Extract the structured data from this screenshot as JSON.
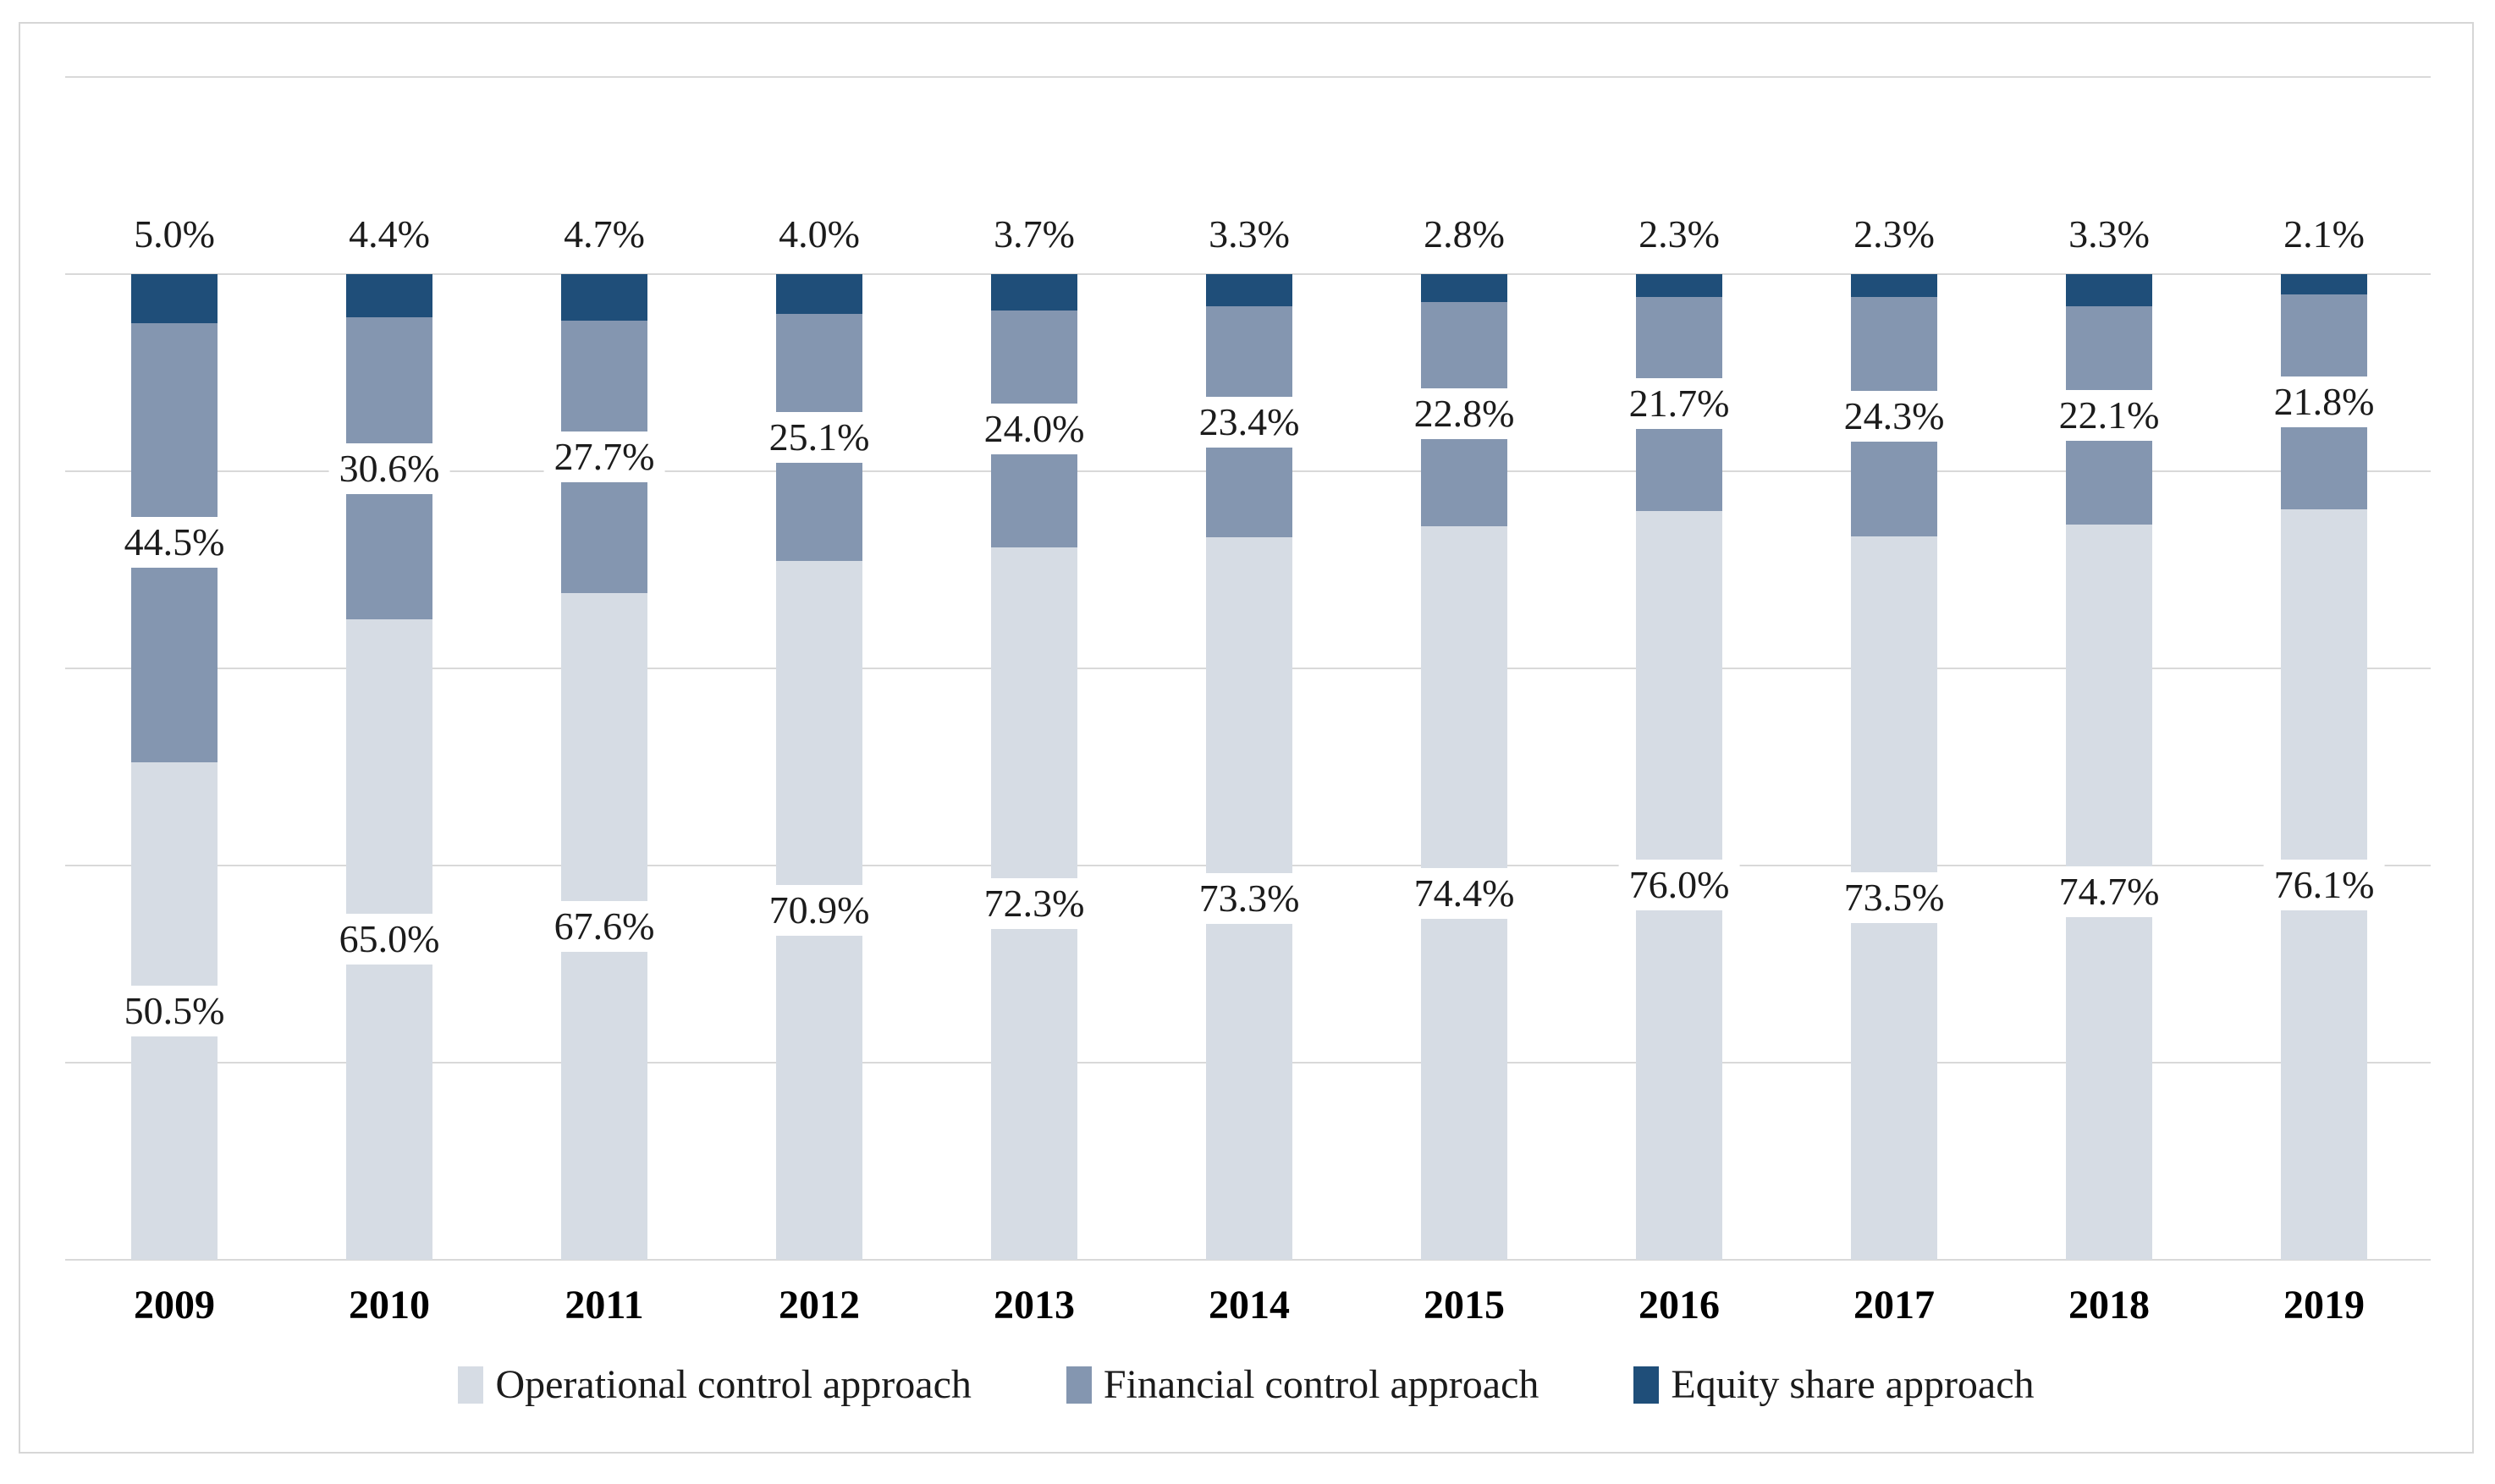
{
  "figure": {
    "background_color": "#FFFFFF",
    "frame_border_color": "#D6D6D6"
  },
  "chart_data": {
    "type": "bar",
    "stacked": true,
    "percent_stacked": true,
    "title": "",
    "xlabel": "",
    "ylabel": "",
    "categories": [
      "2009",
      "2010",
      "2011",
      "2012",
      "2013",
      "2014",
      "2015",
      "2016",
      "2017",
      "2018",
      "2019"
    ],
    "series": [
      {
        "name": "Operational control approach",
        "color": "#D6DCE4",
        "values": [
          50.5,
          65.0,
          67.6,
          70.9,
          72.3,
          73.3,
          74.4,
          76.0,
          73.5,
          74.7,
          76.1
        ],
        "labels": [
          "50.5%",
          "65.0%",
          "67.6%",
          "70.9%",
          "72.3%",
          "73.3%",
          "74.4%",
          "76.0%",
          "73.5%",
          "74.7%",
          "76.1%"
        ]
      },
      {
        "name": "Financial control approach",
        "color": "#8496B0",
        "values": [
          44.5,
          30.6,
          27.7,
          25.1,
          24.0,
          23.4,
          22.8,
          21.7,
          24.3,
          22.1,
          21.8
        ],
        "labels": [
          "44.5%",
          "30.6%",
          "27.7%",
          "25.1%",
          "24.0%",
          "23.4%",
          "22.8%",
          "21.7%",
          "24.3%",
          "22.1%",
          "21.8%"
        ]
      },
      {
        "name": "Equity share approach",
        "color": "#1F4E79",
        "values": [
          5.0,
          4.4,
          4.7,
          4.0,
          3.7,
          3.3,
          2.8,
          2.3,
          2.3,
          3.3,
          2.1
        ],
        "labels": [
          "5.0%",
          "4.4%",
          "4.7%",
          "4.0%",
          "3.7%",
          "3.3%",
          "2.8%",
          "2.3%",
          "2.3%",
          "3.3%",
          "2.1%"
        ]
      }
    ],
    "ylim": [
      0,
      120
    ],
    "gridline_step_pct": 20,
    "gridline_color": "#D9D9D9",
    "grid": true,
    "y_axis_tick_labels_visible": false,
    "legend_position": "bottom",
    "data_label_style": "segment labels centered in segments on white boxes; equity labels above bar tops",
    "label_text_color": "#1B1B1B"
  }
}
